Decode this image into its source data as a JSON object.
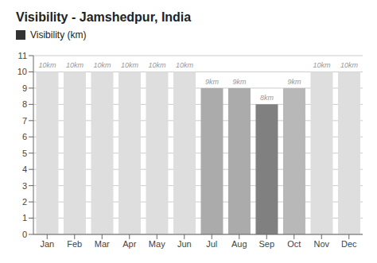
{
  "chart_data": {
    "type": "bar",
    "title": "Visibility - Jamshedpur, India",
    "categories": [
      "Jan",
      "Feb",
      "Mar",
      "Apr",
      "May",
      "Jun",
      "Jul",
      "Aug",
      "Sep",
      "Oct",
      "Nov",
      "Dec"
    ],
    "series": [
      {
        "name": "Visibility (km)",
        "color": "#333333",
        "colors": [
          "#dedede",
          "#dedede",
          "#dedede",
          "#dedede",
          "#dedede",
          "#dedede",
          "#ababab",
          "#ababab",
          "#808080",
          "#b8b8b8",
          "#dedede",
          "#dedede"
        ],
        "values": [
          10,
          10,
          10,
          10,
          10,
          10,
          9,
          9,
          8,
          9,
          10,
          10
        ],
        "value_labels": [
          "10km",
          "10km",
          "10km",
          "10km",
          "10km",
          "10km",
          "9km",
          "9km",
          "8km",
          "9km",
          "10km",
          "10km"
        ]
      }
    ],
    "ylim": [
      0,
      11
    ],
    "yticks": [
      0,
      1,
      2,
      3,
      4,
      5,
      6,
      7,
      8,
      9,
      10,
      11
    ],
    "grid": true,
    "legend": "top left",
    "data_labels": true
  }
}
